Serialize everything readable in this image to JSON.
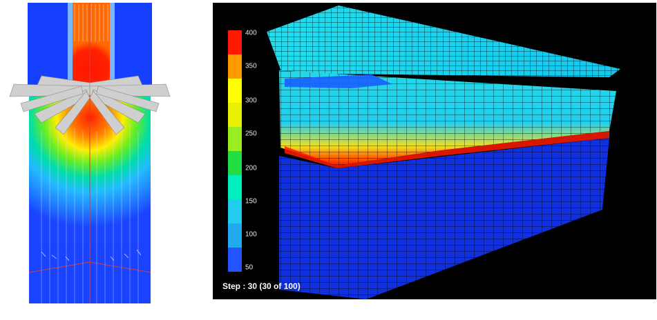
{
  "legend": {
    "ticks": [
      "400",
      "350",
      "300",
      "250",
      "200",
      "150",
      "100",
      "50"
    ],
    "colors": [
      "#ff1a00",
      "#ff9a00",
      "#ffff00",
      "#e6f000",
      "#99ee22",
      "#22dd44",
      "#00f0c0",
      "#22ccee",
      "#22aaee",
      "#2255ff"
    ]
  },
  "status": {
    "step": "Step : 30 (30 of 100)"
  },
  "colors": {
    "background": "#000000",
    "mesh": "#000000",
    "cold": "#1030e0",
    "hot": "#ff1a00"
  }
}
